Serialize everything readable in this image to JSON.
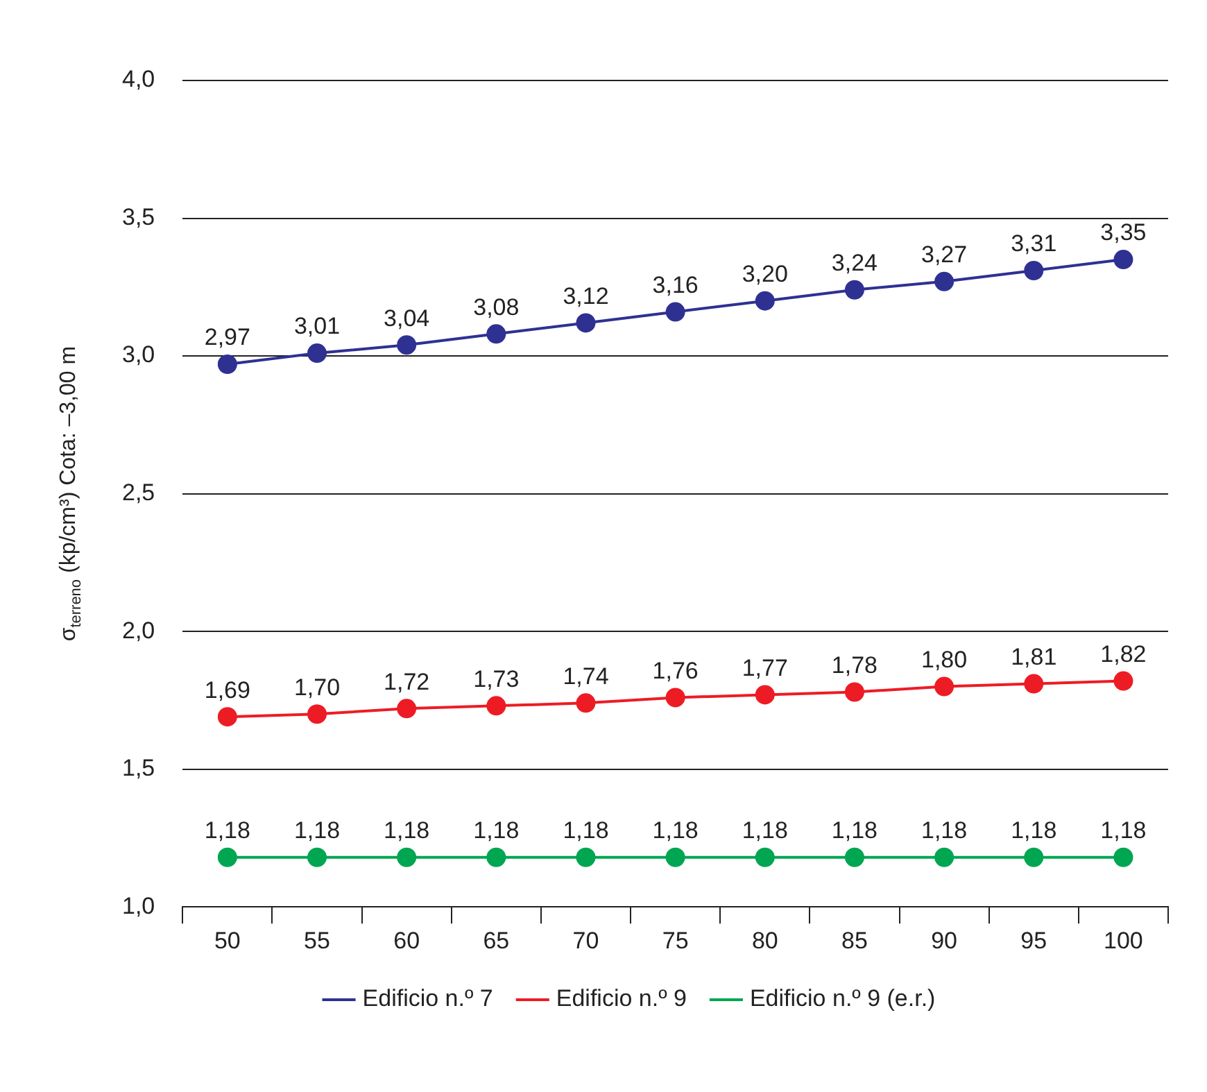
{
  "chart_data": {
    "type": "line",
    "ylabel": "σ$_{terreno}$ (kp/cm³) Cota: –3,00 m",
    "categories": [
      "50",
      "55",
      "60",
      "65",
      "70",
      "75",
      "80",
      "85",
      "90",
      "95",
      "100"
    ],
    "series": [
      {
        "name": "Edificio n.º 7",
        "color": "#2e3192",
        "values": [
          2.97,
          3.01,
          3.04,
          3.08,
          3.12,
          3.16,
          3.2,
          3.24,
          3.27,
          3.31,
          3.35
        ],
        "value_labels": [
          "2,97",
          "3,01",
          "3,04",
          "3,08",
          "3,12",
          "3,16",
          "3,20",
          "3,24",
          "3,27",
          "3,31",
          "3,35"
        ]
      },
      {
        "name": "Edificio n.º 9",
        "color": "#ed1c24",
        "values": [
          1.69,
          1.7,
          1.72,
          1.73,
          1.74,
          1.76,
          1.77,
          1.78,
          1.8,
          1.81,
          1.82
        ],
        "value_labels": [
          "1,69",
          "1,70",
          "1,72",
          "1,73",
          "1,74",
          "1,76",
          "1,77",
          "1,78",
          "1,80",
          "1,81",
          "1,82"
        ]
      },
      {
        "name": "Edificio n.º 9 (e.r.)",
        "color": "#00a651",
        "values": [
          1.18,
          1.18,
          1.18,
          1.18,
          1.18,
          1.18,
          1.18,
          1.18,
          1.18,
          1.18,
          1.18
        ],
        "value_labels": [
          "1,18",
          "1,18",
          "1,18",
          "1,18",
          "1,18",
          "1,18",
          "1,18",
          "1,18",
          "1,18",
          "1,18",
          "1,18"
        ]
      }
    ],
    "ylim": [
      1,
      4
    ],
    "yticks": [
      {
        "value": 1,
        "label": "1,0"
      },
      {
        "value": 1.5,
        "label": "1,5"
      },
      {
        "value": 2,
        "label": "2,0"
      },
      {
        "value": 2.5,
        "label": "2,5"
      },
      {
        "value": 3,
        "label": "3,0"
      },
      {
        "value": 3.5,
        "label": "3,5"
      },
      {
        "value": 4,
        "label": "4,0"
      }
    ],
    "grid": "y",
    "legend": "bottom",
    "marker": "circle",
    "line_style": "solid"
  }
}
